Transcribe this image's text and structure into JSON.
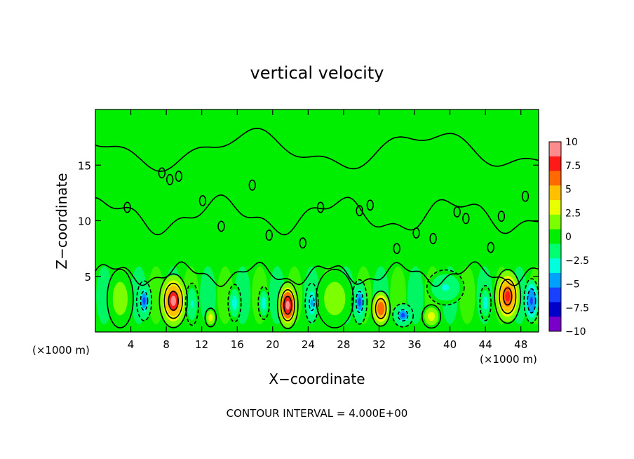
{
  "chart_data": {
    "type": "heatmap",
    "title": "vertical velocity",
    "xlabel": "X−coordinate",
    "ylabel": "Z−coordinate",
    "x_unit_left": "(×1000 m)",
    "x_unit_right": "(×1000 m)",
    "footer": "CONTOUR INTERVAL = 4.000E+00",
    "xlim": [
      0,
      50
    ],
    "ylim": [
      0,
      20
    ],
    "x_ticks": [
      4,
      8,
      12,
      16,
      20,
      24,
      28,
      32,
      36,
      40,
      44,
      48
    ],
    "x_tick_labels": [
      "4",
      "8",
      "12",
      "16",
      "20",
      "24",
      "28",
      "32",
      "36",
      "40",
      "44",
      "48"
    ],
    "y_ticks": [
      5,
      10,
      15
    ],
    "y_tick_labels": [
      "5",
      "10",
      "15"
    ],
    "colorbar": {
      "range": [
        -10,
        10
      ],
      "tick_values": [
        10,
        7.5,
        5,
        2.5,
        0,
        -2.5,
        -5,
        -7.5,
        -10
      ],
      "tick_labels": [
        "10",
        "7.5",
        "5",
        "2.5",
        "0",
        "−2.5",
        "−5",
        "−7.5",
        "−10"
      ],
      "colors": [
        "#ff8c8c",
        "#ff1a1a",
        "#ff6a00",
        "#ffc000",
        "#e8ff00",
        "#7cff00",
        "#00ee00",
        "#00ff70",
        "#00ffdc",
        "#00a0ff",
        "#1a40ff",
        "#0000c8",
        "#7800c8"
      ]
    },
    "features": [
      {
        "x": 8.8,
        "z": 2.8,
        "w": 1.5,
        "h": 2.3,
        "w_value": 9.5
      },
      {
        "x": 21.7,
        "z": 2.4,
        "w": 1.1,
        "h": 2.0,
        "w_value": 10
      },
      {
        "x": 32.2,
        "z": 2.1,
        "w": 1.0,
        "h": 1.5,
        "w_value": 7.5
      },
      {
        "x": 46.5,
        "z": 3.2,
        "w": 1.4,
        "h": 2.3,
        "w_value": 9
      },
      {
        "x": 13.0,
        "z": 1.3,
        "w": 0.6,
        "h": 0.8,
        "w_value": 4
      },
      {
        "x": 37.9,
        "z": 1.4,
        "w": 1.0,
        "h": 1.0,
        "w_value": 4
      },
      {
        "x": 5.5,
        "z": 2.8,
        "w": 0.8,
        "h": 1.7,
        "w_value": -6
      },
      {
        "x": 10.9,
        "z": 2.5,
        "w": 0.7,
        "h": 1.8,
        "w_value": -3
      },
      {
        "x": 15.7,
        "z": 2.6,
        "w": 0.7,
        "h": 1.6,
        "w_value": -4
      },
      {
        "x": 19.0,
        "z": 2.6,
        "w": 0.6,
        "h": 1.4,
        "w_value": -4
      },
      {
        "x": 24.4,
        "z": 2.6,
        "w": 0.7,
        "h": 1.7,
        "w_value": -5
      },
      {
        "x": 29.8,
        "z": 2.7,
        "w": 0.8,
        "h": 1.9,
        "w_value": -6
      },
      {
        "x": 34.7,
        "z": 1.5,
        "w": 1.1,
        "h": 1.0,
        "w_value": -6
      },
      {
        "x": 44.0,
        "z": 2.6,
        "w": 0.6,
        "h": 1.5,
        "w_value": -4
      },
      {
        "x": 49.2,
        "z": 2.8,
        "w": 0.8,
        "h": 1.9,
        "w_value": -7
      },
      {
        "x": 39.5,
        "z": 4.0,
        "w": 2.0,
        "h": 1.5,
        "w_value": -2.5
      },
      {
        "x": 2.8,
        "z": 3.0,
        "w": 1.4,
        "h": 2.5,
        "w_value": 2
      },
      {
        "x": 27.0,
        "z": 3.0,
        "w": 2.0,
        "h": 2.5,
        "w_value": 1.5
      }
    ]
  }
}
